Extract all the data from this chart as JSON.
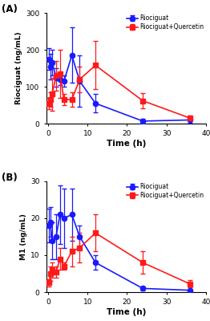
{
  "panel_A": {
    "title": "(A)",
    "ylabel": "Riociguat (ng/mL)",
    "xlabel": "Time (h)",
    "ylim": [
      0,
      300
    ],
    "yticks": [
      0,
      100,
      200,
      300
    ],
    "xlim": [
      -0.5,
      40
    ],
    "xticks": [
      0,
      10,
      20,
      30,
      40
    ],
    "blue_x": [
      0.25,
      0.5,
      1,
      2,
      3,
      4,
      6,
      8,
      12,
      24,
      36
    ],
    "blue_y": [
      175,
      155,
      165,
      125,
      120,
      115,
      185,
      115,
      55,
      7,
      10
    ],
    "blue_err": [
      30,
      35,
      35,
      25,
      15,
      15,
      75,
      70,
      25,
      6,
      8
    ],
    "red_x": [
      0.25,
      0.5,
      1,
      2,
      3,
      4,
      6,
      8,
      12,
      24,
      36
    ],
    "red_y": [
      55,
      65,
      80,
      130,
      135,
      65,
      65,
      120,
      158,
      62,
      15
    ],
    "red_err": [
      15,
      20,
      45,
      40,
      65,
      15,
      20,
      35,
      65,
      20,
      8
    ]
  },
  "panel_B": {
    "title": "(B)",
    "ylabel": "M1 (ng/mL)",
    "xlabel": "Time (h)",
    "ylim": [
      0,
      30
    ],
    "yticks": [
      0,
      10,
      20,
      30
    ],
    "xlim": [
      -0.5,
      40
    ],
    "xticks": [
      0,
      10,
      20,
      30,
      40
    ],
    "blue_x": [
      0.25,
      0.5,
      1,
      2,
      3,
      4,
      6,
      8,
      12,
      24,
      36
    ],
    "blue_y": [
      18.0,
      19.0,
      14.0,
      15.0,
      21.0,
      20.0,
      21.0,
      15.0,
      8.0,
      1.0,
      0.5
    ],
    "blue_err": [
      4.5,
      4.0,
      5.0,
      6.0,
      8.0,
      8.0,
      7.0,
      3.0,
      2.0,
      0.5,
      0.3
    ],
    "red_x": [
      0.25,
      0.5,
      1,
      2,
      3,
      4,
      6,
      8,
      12,
      24,
      36
    ],
    "red_y": [
      2.5,
      5.0,
      6.0,
      5.5,
      9.0,
      7.0,
      11.0,
      12.0,
      16.0,
      8.0,
      2.2
    ],
    "red_err": [
      1.0,
      2.0,
      2.0,
      1.5,
      3.0,
      1.0,
      4.0,
      4.0,
      5.0,
      3.0,
      1.0
    ]
  },
  "blue_color": "#1a1aff",
  "red_color": "#ff1a1a",
  "legend_blue": "Riociguat",
  "legend_red": "Riociguat+Quercetin",
  "marker_blue": "o",
  "marker_red": "s",
  "markersize": 4.5,
  "linewidth": 1.2,
  "capsize": 2.5,
  "elinewidth": 0.9
}
